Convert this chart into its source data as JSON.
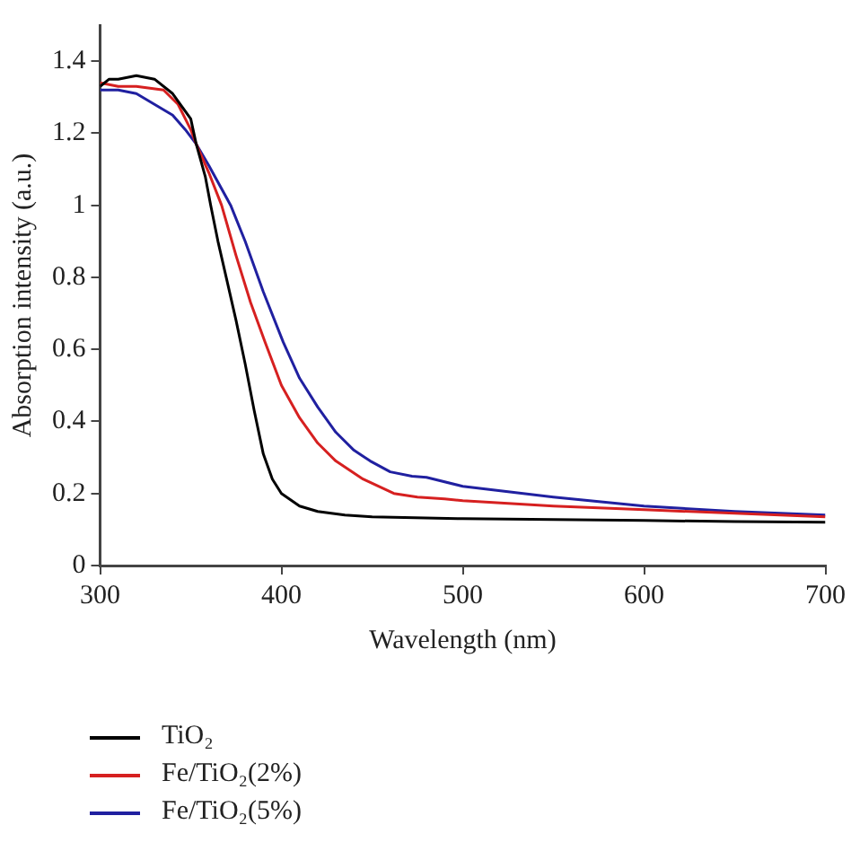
{
  "chart_data": {
    "type": "line",
    "xlabel": "Wavelength (nm)",
    "ylabel": "Absorption intensity (a.u.)",
    "xlim": [
      300,
      700
    ],
    "xticks": [
      300,
      400,
      500,
      600,
      700
    ],
    "ylim": [
      0,
      1.5
    ],
    "yticks": [
      0,
      0.2,
      0.4,
      0.6,
      0.8,
      1,
      1.2,
      1.4
    ],
    "grid": false,
    "legend": "bottom left",
    "marker": "none",
    "line_style": "solid",
    "series": [
      {
        "name": "TiO₂",
        "color": "#000000",
        "x": [
          300,
          305,
          310,
          320,
          330,
          340,
          350,
          353,
          358,
          361,
          365,
          370,
          375,
          380,
          385,
          390,
          395,
          400,
          410,
          420,
          435,
          450,
          500,
          550,
          600,
          650,
          700
        ],
        "values": [
          1.33,
          1.35,
          1.35,
          1.36,
          1.35,
          1.31,
          1.24,
          1.17,
          1.08,
          1.0,
          0.9,
          0.79,
          0.68,
          0.56,
          0.43,
          0.31,
          0.24,
          0.2,
          0.165,
          0.15,
          0.14,
          0.135,
          0.13,
          0.128,
          0.125,
          0.122,
          0.12
        ]
      },
      {
        "name": "Fe/TiO₂(2%)",
        "color": "#d62020",
        "x": [
          300,
          310,
          320,
          335,
          343,
          350,
          353,
          360,
          367,
          375,
          383,
          391,
          400,
          410,
          420,
          430,
          445,
          462,
          475,
          490,
          500,
          550,
          600,
          650,
          700
        ],
        "values": [
          1.34,
          1.33,
          1.33,
          1.32,
          1.28,
          1.21,
          1.17,
          1.09,
          1.0,
          0.86,
          0.73,
          0.62,
          0.5,
          0.41,
          0.34,
          0.29,
          0.24,
          0.2,
          0.19,
          0.185,
          0.18,
          0.165,
          0.155,
          0.145,
          0.135
        ]
      },
      {
        "name": "Fe/TiO₂(5%)",
        "color": "#2020a0",
        "x": [
          300,
          310,
          320,
          330,
          340,
          347,
          353,
          360,
          372,
          380,
          390,
          401,
          410,
          420,
          430,
          440,
          449,
          460,
          472,
          480,
          500,
          550,
          600,
          650,
          700
        ],
        "values": [
          1.32,
          1.32,
          1.31,
          1.28,
          1.25,
          1.21,
          1.17,
          1.11,
          1.0,
          0.9,
          0.76,
          0.62,
          0.52,
          0.44,
          0.37,
          0.32,
          0.29,
          0.26,
          0.248,
          0.245,
          0.22,
          0.19,
          0.165,
          0.15,
          0.14
        ]
      }
    ]
  }
}
